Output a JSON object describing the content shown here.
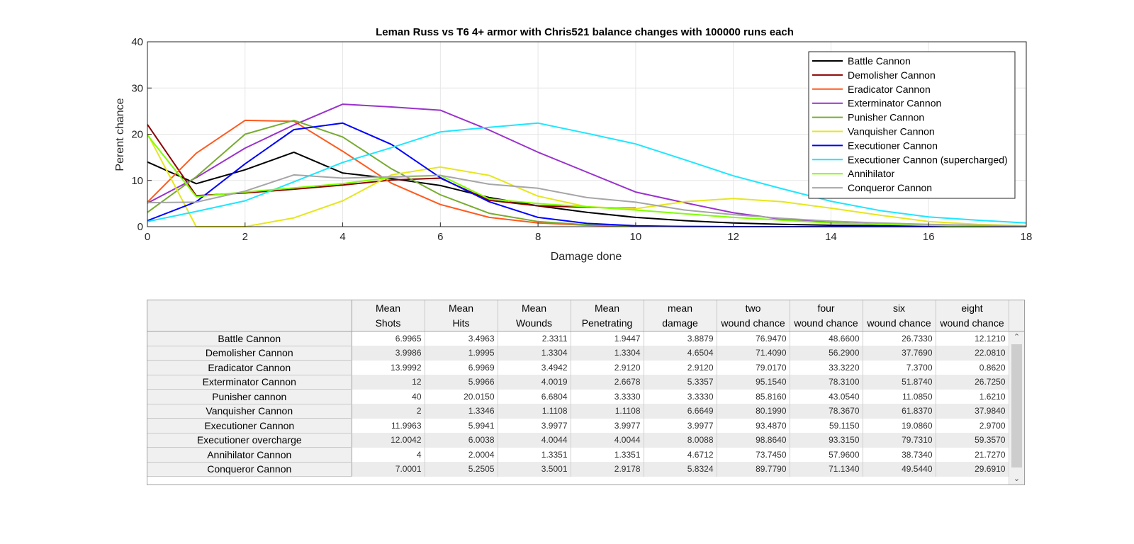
{
  "chart_data": {
    "type": "line",
    "title": "Leman Russ vs T6 4+ armor with Chris521 balance changes with 100000 runs each",
    "xlabel": "Damage done",
    "ylabel": "Perent chance",
    "xlim": [
      0,
      18
    ],
    "ylim": [
      0,
      40
    ],
    "xticks": [
      0,
      2,
      4,
      6,
      8,
      10,
      12,
      14,
      16,
      18
    ],
    "yticks": [
      0,
      10,
      20,
      30,
      40
    ],
    "grid": true,
    "legend_position": "top-right",
    "x": [
      0,
      1,
      2,
      3,
      4,
      5,
      6,
      7,
      8,
      9,
      10,
      11,
      12,
      13,
      14,
      15,
      16,
      17,
      18
    ],
    "series": [
      {
        "name": "Battle Cannon",
        "color": "#000000",
        "values": [
          14,
          9.3,
          12.3,
          16.1,
          11.6,
          10.4,
          8.9,
          6.3,
          4.5,
          3.1,
          2.0,
          1.3,
          0.8,
          0.5,
          0.3,
          0.2,
          0.1,
          0.05,
          0.02
        ]
      },
      {
        "name": "Demolisher Cannon",
        "color": "#8b0000",
        "values": [
          22.1,
          6.7,
          7.3,
          8.1,
          9.0,
          10.1,
          10.5,
          5.7,
          4.5,
          4.2,
          4.0,
          null,
          null,
          null,
          null,
          null,
          null,
          null,
          null
        ]
      },
      {
        "name": "Eradicator Cannon",
        "color": "#ff5a1e",
        "values": [
          5.3,
          15.9,
          23.0,
          22.8,
          16.3,
          9.4,
          4.8,
          2.0,
          0.8,
          0.3,
          0.1,
          0.03,
          0,
          0,
          0,
          0,
          0,
          0,
          0
        ]
      },
      {
        "name": "Exterminator Cannon",
        "color": "#9932cc",
        "values": [
          5.1,
          10.6,
          17.0,
          22.0,
          26.5,
          25.9,
          25.2,
          20.9,
          16.1,
          11.8,
          7.5,
          5.2,
          3.0,
          1.6,
          0.9,
          0.5,
          0.3,
          0.15,
          0.05
        ]
      },
      {
        "name": "Punisher Cannon",
        "color": "#77ac30",
        "values": [
          3.1,
          10.8,
          20.0,
          23.0,
          19.4,
          12.5,
          6.9,
          2.9,
          1.1,
          0.4,
          0.1,
          0.03,
          0,
          0,
          0,
          0,
          0,
          0,
          0
        ]
      },
      {
        "name": "Vanquisher Cannon",
        "color": "#e6e61e",
        "values": [
          20.1,
          0,
          0,
          1.9,
          5.6,
          11.2,
          12.9,
          11.1,
          6.6,
          4.3,
          3.9,
          5.4,
          6.1,
          5.4,
          4.0,
          2.5,
          1.1,
          0.5,
          0.2
        ]
      },
      {
        "name": "Executioner Cannon",
        "color": "#0000ff",
        "values": [
          1.3,
          5.4,
          13.6,
          21.0,
          22.4,
          17.8,
          10.6,
          5.4,
          2.0,
          0.7,
          0.2,
          0.05,
          0,
          0,
          0,
          0,
          0,
          0,
          0
        ]
      },
      {
        "name": "Executioner Cannon (supercharged)",
        "color": "#1ee6ff",
        "values": [
          1.1,
          3.3,
          5.6,
          9.7,
          13.9,
          17.1,
          20.5,
          21.5,
          22.4,
          20.2,
          17.9,
          14.5,
          11.0,
          8.2,
          5.5,
          3.5,
          2.1,
          1.4,
          0.8
        ]
      },
      {
        "name": "Annihilator",
        "color": "#80ff00",
        "values": [
          19.8,
          6.5,
          7.5,
          8.4,
          9.3,
          10.7,
          11.1,
          6.0,
          5.0,
          4.3,
          3.6,
          2.8,
          2.0,
          1.4,
          0.8,
          0.5,
          0.3,
          0.1,
          0.05
        ]
      },
      {
        "name": "Conqueror Cannon",
        "color": "#a6a6a6",
        "values": [
          5.2,
          5.3,
          7.7,
          11.2,
          10.5,
          10.8,
          11.1,
          9.2,
          8.3,
          6.3,
          5.3,
          3.6,
          2.6,
          1.8,
          1.2,
          0.8,
          0.5,
          0.3,
          0.1
        ]
      }
    ]
  },
  "table": {
    "columns": [
      [
        "Mean",
        "Shots"
      ],
      [
        "Mean",
        "Hits"
      ],
      [
        "Mean",
        "Wounds"
      ],
      [
        "Mean",
        "Penetrating"
      ],
      [
        "mean",
        "damage"
      ],
      [
        "two",
        "wound chance"
      ],
      [
        "four",
        "wound chance"
      ],
      [
        "six",
        "wound chance"
      ],
      [
        "eight",
        "wound chance"
      ]
    ],
    "rows": [
      {
        "name": "Battle Cannon",
        "values": [
          "6.9965",
          "3.4963",
          "2.3311",
          "1.9447",
          "3.8879",
          "76.9470",
          "48.6600",
          "26.7330",
          "12.1210"
        ]
      },
      {
        "name": "Demolisher Cannon",
        "values": [
          "3.9986",
          "1.9995",
          "1.3304",
          "1.3304",
          "4.6504",
          "71.4090",
          "56.2900",
          "37.7690",
          "22.0810"
        ]
      },
      {
        "name": "Eradicator Cannon",
        "values": [
          "13.9992",
          "6.9969",
          "3.4942",
          "2.9120",
          "2.9120",
          "79.0170",
          "33.3220",
          "7.3700",
          "0.8620"
        ]
      },
      {
        "name": "Exterminator Cannon",
        "values": [
          "12",
          "5.9966",
          "4.0019",
          "2.6678",
          "5.3357",
          "95.1540",
          "78.3100",
          "51.8740",
          "26.7250"
        ]
      },
      {
        "name": "Punisher cannon",
        "values": [
          "40",
          "20.0150",
          "6.6804",
          "3.3330",
          "3.3330",
          "85.8160",
          "43.0540",
          "11.0850",
          "1.6210"
        ]
      },
      {
        "name": "Vanquisher Cannon",
        "values": [
          "2",
          "1.3346",
          "1.1108",
          "1.1108",
          "6.6649",
          "80.1990",
          "78.3670",
          "61.8370",
          "37.9840"
        ]
      },
      {
        "name": "Executioner Cannon",
        "values": [
          "11.9963",
          "5.9941",
          "3.9977",
          "3.9977",
          "3.9977",
          "93.4870",
          "59.1150",
          "19.0860",
          "2.9700"
        ]
      },
      {
        "name": "Executioner overcharge",
        "values": [
          "12.0042",
          "6.0038",
          "4.0044",
          "4.0044",
          "8.0088",
          "98.8640",
          "93.3150",
          "79.7310",
          "59.3570"
        ]
      },
      {
        "name": "Annihilator Cannon",
        "values": [
          "4",
          "2.0004",
          "1.3351",
          "1.3351",
          "4.6712",
          "73.7450",
          "57.9600",
          "38.7340",
          "21.7270"
        ]
      },
      {
        "name": "Conqueror Cannon",
        "values": [
          "7.0001",
          "5.2505",
          "3.5001",
          "2.9178",
          "5.8324",
          "89.7790",
          "71.1340",
          "49.5440",
          "29.6910"
        ]
      }
    ],
    "scroll_up_glyph": "⌃",
    "scroll_down_glyph": "⌄"
  }
}
